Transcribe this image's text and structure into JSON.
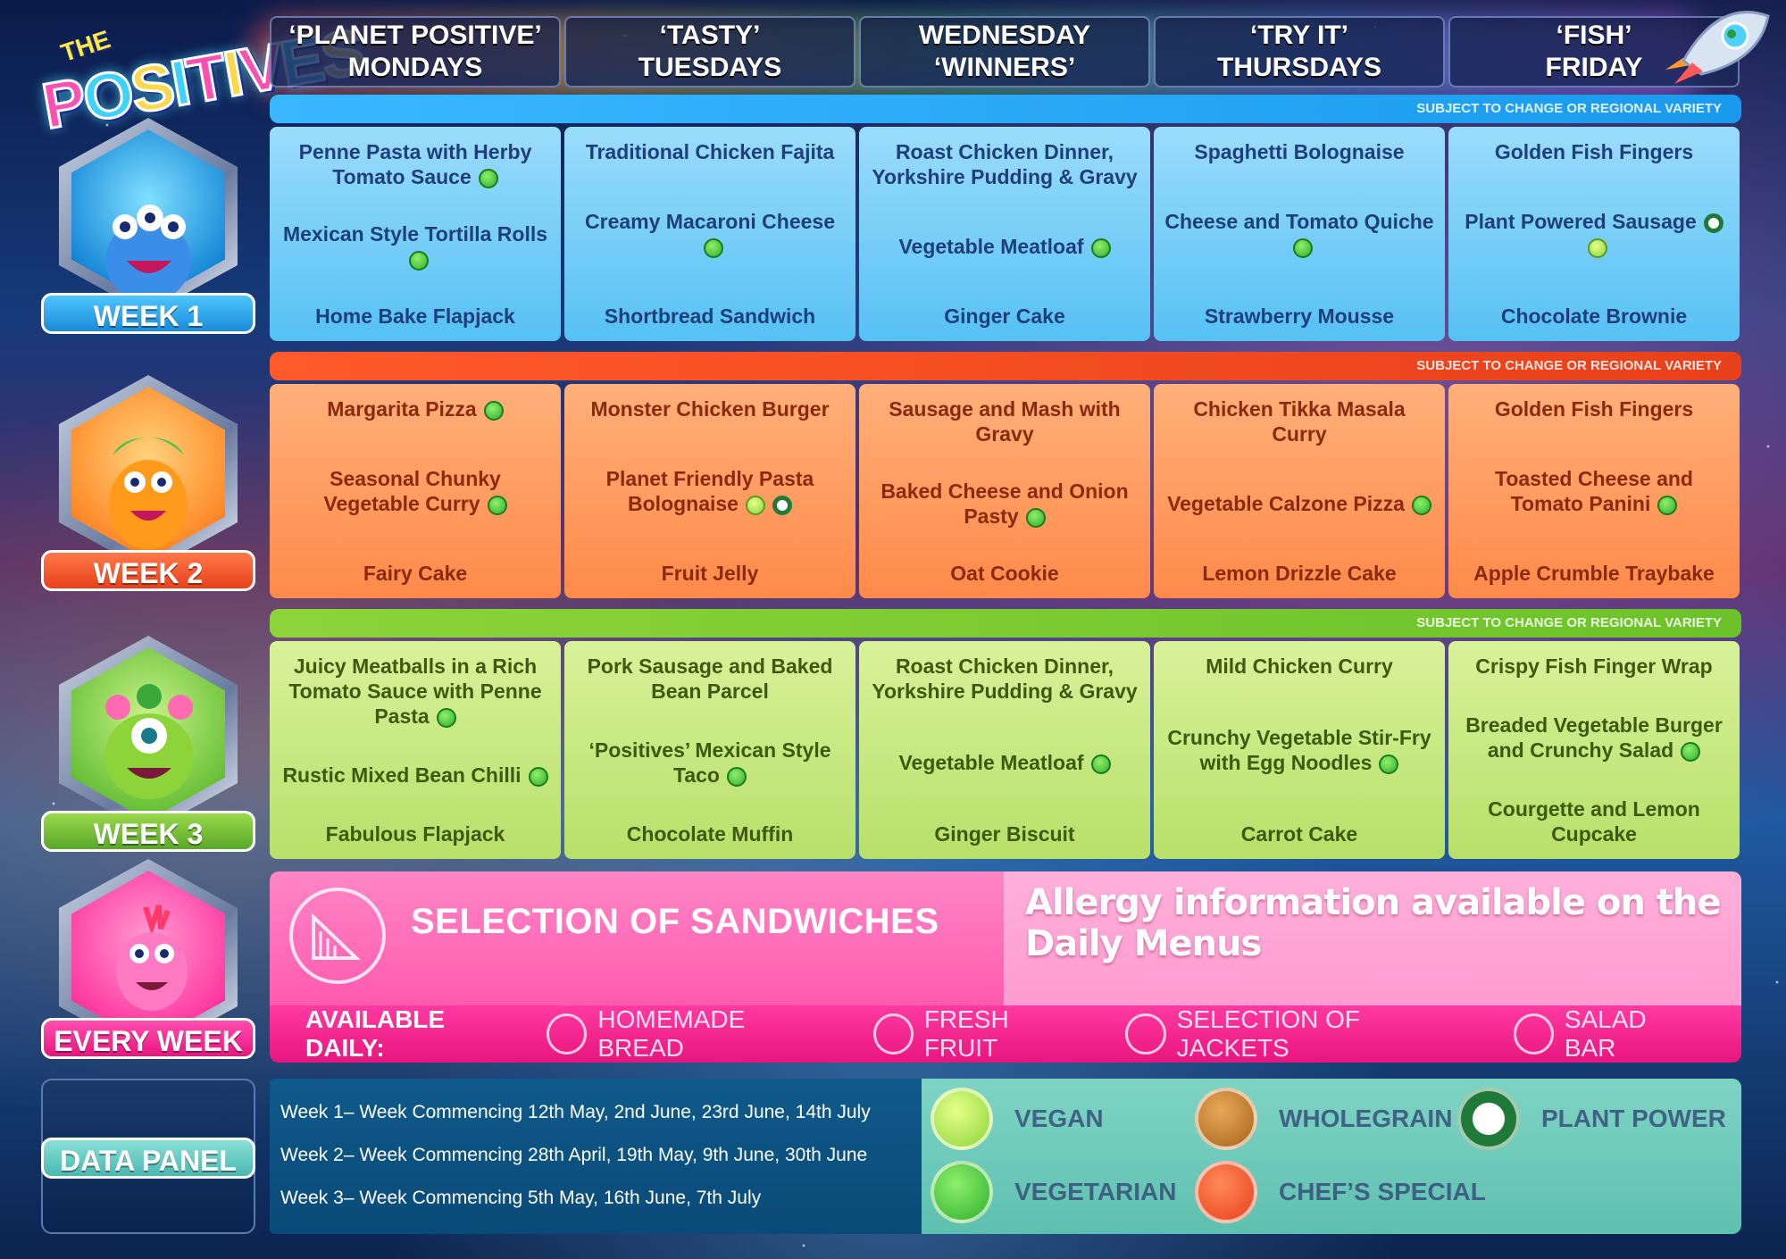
{
  "logo": {
    "the": "THE",
    "letters": [
      "P",
      "O",
      "S",
      "I",
      "T",
      "I",
      "V",
      "E",
      "S"
    ]
  },
  "days": [
    {
      "line1": "‘PLANET POSITIVE’",
      "line2": "MONDAYS"
    },
    {
      "line1": "‘TASTY’",
      "line2": "TUESDAYS"
    },
    {
      "line1": "WEDNESDAY",
      "line2": "‘WINNERS’"
    },
    {
      "line1": "‘TRY IT’",
      "line2": "THURSDAYS"
    },
    {
      "line1": "‘FISH’",
      "line2": "FRIDAY"
    }
  ],
  "notice": "SUBJECT TO CHANGE OR REGIONAL VARIETY",
  "weeks": [
    {
      "label": "WEEK 1",
      "days": [
        [
          {
            "name": "Penne Pasta with Herby Tomato Sauce",
            "icons": [
              "vegetarian"
            ]
          },
          {
            "name": "Mexican Style Tortilla Rolls",
            "icons": [
              "vegetarian"
            ]
          },
          {
            "name": "Home Bake Flapjack",
            "icons": []
          }
        ],
        [
          {
            "name": "Traditional Chicken Fajita",
            "icons": []
          },
          {
            "name": "Creamy Macaroni Cheese",
            "icons": [
              "vegetarian"
            ]
          },
          {
            "name": "Shortbread Sandwich",
            "icons": []
          }
        ],
        [
          {
            "name": "Roast Chicken Dinner, Yorkshire Pudding & Gravy",
            "icons": []
          },
          {
            "name": "Vegetable Meatloaf",
            "icons": [
              "vegetarian"
            ]
          },
          {
            "name": "Ginger Cake",
            "icons": []
          }
        ],
        [
          {
            "name": "Spaghetti Bolognaise",
            "icons": []
          },
          {
            "name": "Cheese and Tomato Quiche",
            "icons": [
              "vegetarian"
            ]
          },
          {
            "name": "Strawberry Mousse",
            "icons": []
          }
        ],
        [
          {
            "name": "Golden Fish Fingers",
            "icons": []
          },
          {
            "name": "Plant Powered Sausage",
            "icons": [
              "plant-power",
              "vegan"
            ]
          },
          {
            "name": "Chocolate Brownie",
            "icons": []
          }
        ]
      ]
    },
    {
      "label": "WEEK 2",
      "days": [
        [
          {
            "name": "Margarita Pizza",
            "icons": [
              "vegetarian"
            ]
          },
          {
            "name": "Seasonal Chunky Vegetable Curry",
            "icons": [
              "vegetarian"
            ]
          },
          {
            "name": "Fairy Cake",
            "icons": []
          }
        ],
        [
          {
            "name": "Monster Chicken Burger",
            "icons": []
          },
          {
            "name": "Planet Friendly Pasta Bolognaise",
            "icons": [
              "vegan",
              "plant-power"
            ]
          },
          {
            "name": "Fruit Jelly",
            "icons": []
          }
        ],
        [
          {
            "name": "Sausage and Mash with Gravy",
            "icons": []
          },
          {
            "name": "Baked Cheese and Onion Pasty",
            "icons": [
              "vegetarian"
            ]
          },
          {
            "name": "Oat Cookie",
            "icons": []
          }
        ],
        [
          {
            "name": "Chicken Tikka Masala Curry",
            "icons": []
          },
          {
            "name": "Vegetable Calzone Pizza",
            "icons": [
              "vegetarian"
            ]
          },
          {
            "name": "Lemon Drizzle Cake",
            "icons": []
          }
        ],
        [
          {
            "name": "Golden Fish Fingers",
            "icons": []
          },
          {
            "name": "Toasted Cheese and Tomato Panini",
            "icons": [
              "vegetarian"
            ]
          },
          {
            "name": "Apple Crumble Traybake",
            "icons": []
          }
        ]
      ]
    },
    {
      "label": "WEEK 3",
      "days": [
        [
          {
            "name": "Juicy Meatballs in a Rich Tomato Sauce with Penne Pasta",
            "icons": [
              "vegetarian"
            ]
          },
          {
            "name": "Rustic Mixed Bean Chilli",
            "icons": [
              "vegetarian"
            ]
          },
          {
            "name": "Fabulous Flapjack",
            "icons": []
          }
        ],
        [
          {
            "name": "Pork Sausage and Baked Bean Parcel",
            "icons": []
          },
          {
            "name": "‘Positives’ Mexican Style Taco",
            "icons": [
              "vegetarian"
            ]
          },
          {
            "name": "Chocolate Muffin",
            "icons": []
          }
        ],
        [
          {
            "name": "Roast Chicken Dinner, Yorkshire Pudding & Gravy",
            "icons": []
          },
          {
            "name": "Vegetable Meatloaf",
            "icons": [
              "vegetarian"
            ]
          },
          {
            "name": "Ginger Biscuit",
            "icons": []
          }
        ],
        [
          {
            "name": "Mild Chicken Curry",
            "icons": []
          },
          {
            "name": "Crunchy Vegetable Stir-Fry with Egg Noodles",
            "icons": [
              "vegetarian"
            ]
          },
          {
            "name": "Carrot Cake",
            "icons": []
          }
        ],
        [
          {
            "name": "Crispy Fish Finger Wrap",
            "icons": []
          },
          {
            "name": "Breaded Vegetable Burger and Crunchy Salad",
            "icons": [
              "vegetarian"
            ]
          },
          {
            "name": "Courgette and Lemon Cupcake",
            "icons": []
          }
        ]
      ]
    }
  ],
  "every_week": {
    "label": "EVERY WEEK",
    "sandwiches": "SELECTION OF SANDWICHES",
    "allergy": "Allergy information available on the Daily Menus",
    "available_label": "AVAILABLE DAILY:",
    "available_items": [
      "HOMEMADE BREAD",
      "FRESH FRUIT",
      "SELECTION OF JACKETS",
      "SALAD BAR"
    ]
  },
  "data_panel": {
    "label": "DATA PANEL",
    "lines": [
      "Week 1– Week Commencing 12th May, 2nd June, 23rd June, 14th July",
      "Week 2– Week Commencing 28th April, 19th May, 9th June, 30th June",
      "Week 3– Week Commencing 5th May, 16th June, 7th July"
    ]
  },
  "key": {
    "vegan": "VEGAN",
    "wholegrain": "WHOLEGRAIN",
    "plant_power": "PLANT POWER",
    "vegetarian": "VEGETARIAN",
    "chefs_special": "CHEF’S SPECIAL"
  },
  "colors": {
    "week1": "#56c1f4",
    "week2": "#ff8a4a",
    "week3": "#b7e06a",
    "every_week": "#ff3aa0",
    "vegetarian_icon": "#2fae2f",
    "vegan_icon": "#8cd43a",
    "plant_power_icon": "#1f7a3a"
  }
}
